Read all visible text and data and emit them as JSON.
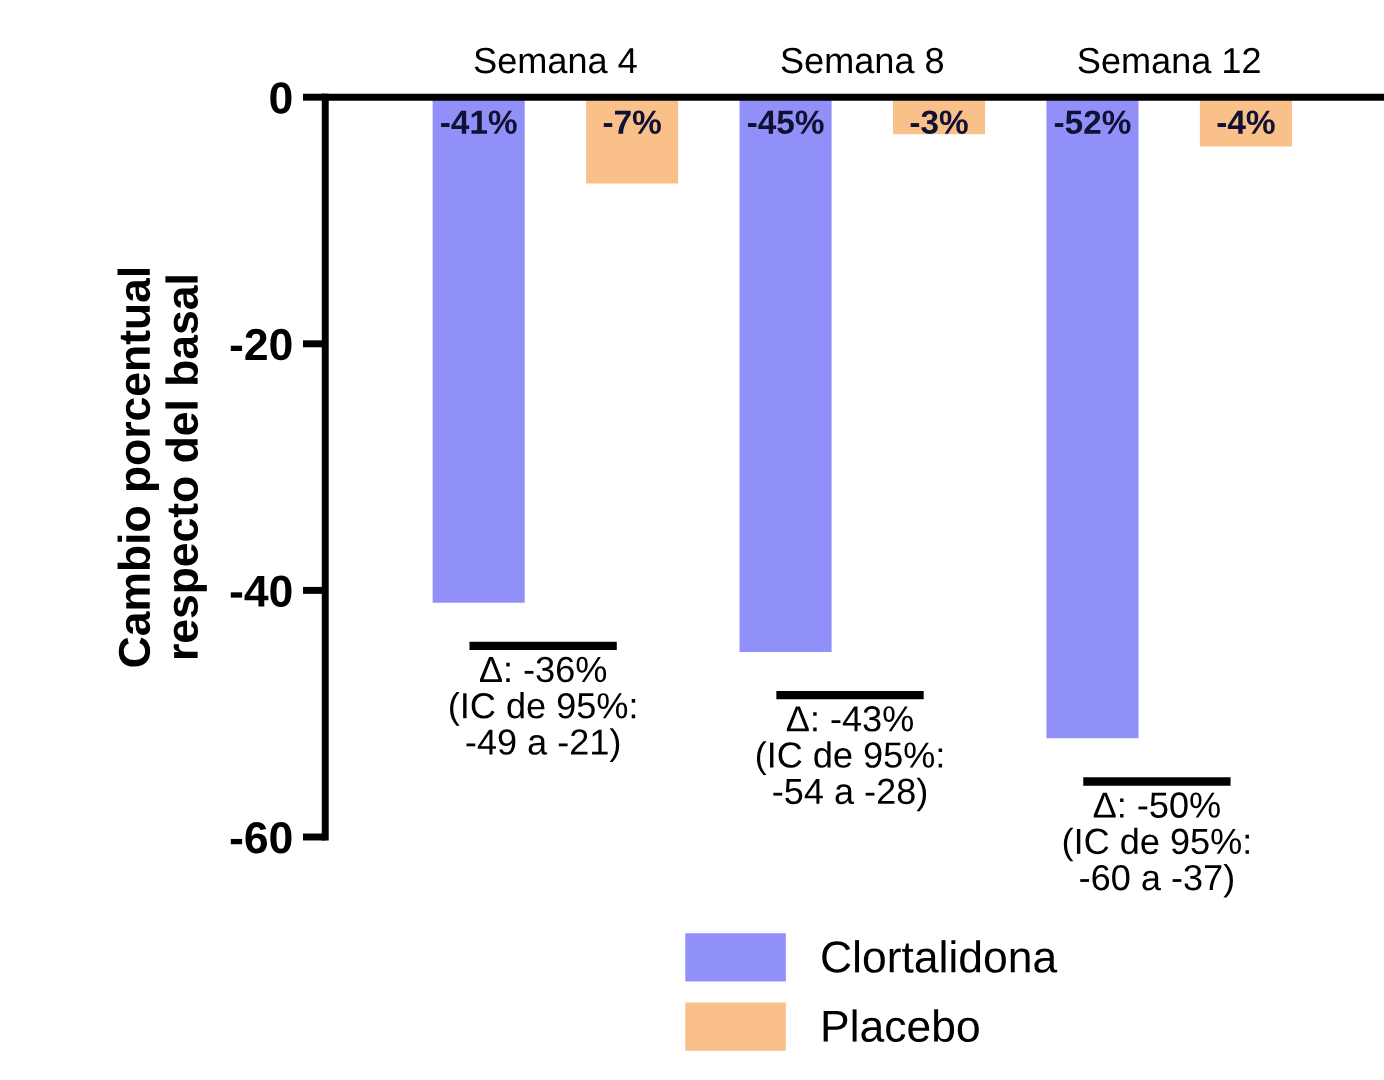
{
  "chart_data": {
    "type": "bar",
    "ylabel": "Cambio porcentual\nrespecto del basal",
    "categories": [
      "Semana 4",
      "Semana 8",
      "Semana 12"
    ],
    "series": [
      {
        "name": "Clortalidona",
        "color": "#9090f8",
        "values": [
          -41,
          -45,
          -52
        ],
        "value_labels": [
          "-41%",
          "-45%",
          "-52%"
        ]
      },
      {
        "name": "Placebo",
        "color": "#f9c08a",
        "values": [
          -7,
          -3,
          -4
        ],
        "value_labels": [
          "-7%",
          "-3%",
          "-4%"
        ]
      }
    ],
    "ylim": [
      -60,
      0
    ],
    "yticks": [
      0,
      -20,
      -40,
      -60
    ],
    "grid": false,
    "legend": "bottom",
    "annotations": [
      "Δ: -36%\n(IC de 95%:\n-49 a -21)",
      "Δ: -43%\n(IC de 95%:\n-54 a -28)",
      "Δ: -50%\n(IC de 95%:\n-60 a -37)"
    ]
  }
}
